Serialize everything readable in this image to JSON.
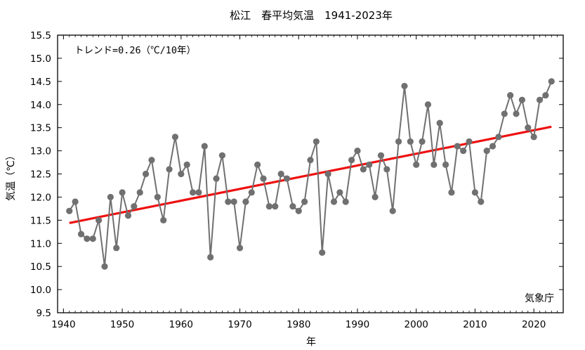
{
  "chart_data": {
    "type": "line",
    "title": "松江　春平均気温　1941-2023年",
    "xlabel": "年",
    "ylabel": "気温（℃）",
    "trend_label": "トレンド=0.26（℃/10年）",
    "source_label": "気象庁",
    "xlim": [
      1939,
      2025
    ],
    "ylim": [
      9.5,
      15.5
    ],
    "x_ticks": [
      1940,
      1950,
      1960,
      1970,
      1980,
      1990,
      2000,
      2010,
      2020
    ],
    "y_ticks": [
      9.5,
      10.0,
      10.5,
      11.0,
      11.5,
      12.0,
      12.5,
      13.0,
      13.5,
      14.0,
      14.5,
      15.0,
      15.5
    ],
    "grid": false,
    "colors": {
      "series": "#707070",
      "trend": "#ee1111",
      "axis": "#000000"
    },
    "x": [
      1941,
      1942,
      1943,
      1944,
      1945,
      1946,
      1947,
      1948,
      1949,
      1950,
      1951,
      1952,
      1953,
      1954,
      1955,
      1956,
      1957,
      1958,
      1959,
      1960,
      1961,
      1962,
      1963,
      1964,
      1965,
      1966,
      1967,
      1968,
      1969,
      1970,
      1971,
      1972,
      1973,
      1974,
      1975,
      1976,
      1977,
      1978,
      1979,
      1980,
      1981,
      1982,
      1983,
      1984,
      1985,
      1986,
      1987,
      1988,
      1989,
      1990,
      1991,
      1992,
      1993,
      1994,
      1995,
      1996,
      1997,
      1998,
      1999,
      2000,
      2001,
      2002,
      2003,
      2004,
      2005,
      2006,
      2007,
      2008,
      2009,
      2010,
      2011,
      2012,
      2013,
      2014,
      2015,
      2016,
      2017,
      2018,
      2019,
      2020,
      2021,
      2022,
      2023
    ],
    "series": [
      {
        "values": [
          11.7,
          11.9,
          11.2,
          11.1,
          11.1,
          11.5,
          10.5,
          12.0,
          10.9,
          12.1,
          11.6,
          11.8,
          12.1,
          12.5,
          12.8,
          12.0,
          11.5,
          12.6,
          13.3,
          12.5,
          12.7,
          12.1,
          12.1,
          13.1,
          10.7,
          12.4,
          12.9,
          11.9,
          11.9,
          10.9,
          11.9,
          12.1,
          12.7,
          12.4,
          11.8,
          11.8,
          12.5,
          12.4,
          11.8,
          11.7,
          11.9,
          12.8,
          13.2,
          10.8,
          12.5,
          11.9,
          12.1,
          11.9,
          12.8,
          13.0,
          12.6,
          12.7,
          12.0,
          12.9,
          12.6,
          11.7,
          13.2,
          14.4,
          13.2,
          12.7,
          13.2,
          14.0,
          12.7,
          13.6,
          12.7,
          12.1,
          13.1,
          13.0,
          13.2,
          12.1,
          11.9,
          13.0,
          13.1,
          13.3,
          13.8,
          14.2,
          13.8,
          14.1,
          13.5,
          13.3,
          14.1,
          14.2,
          14.5
        ]
      }
    ],
    "trend": {
      "x": [
        1941,
        2023
      ],
      "y": [
        11.44,
        13.52
      ]
    }
  }
}
